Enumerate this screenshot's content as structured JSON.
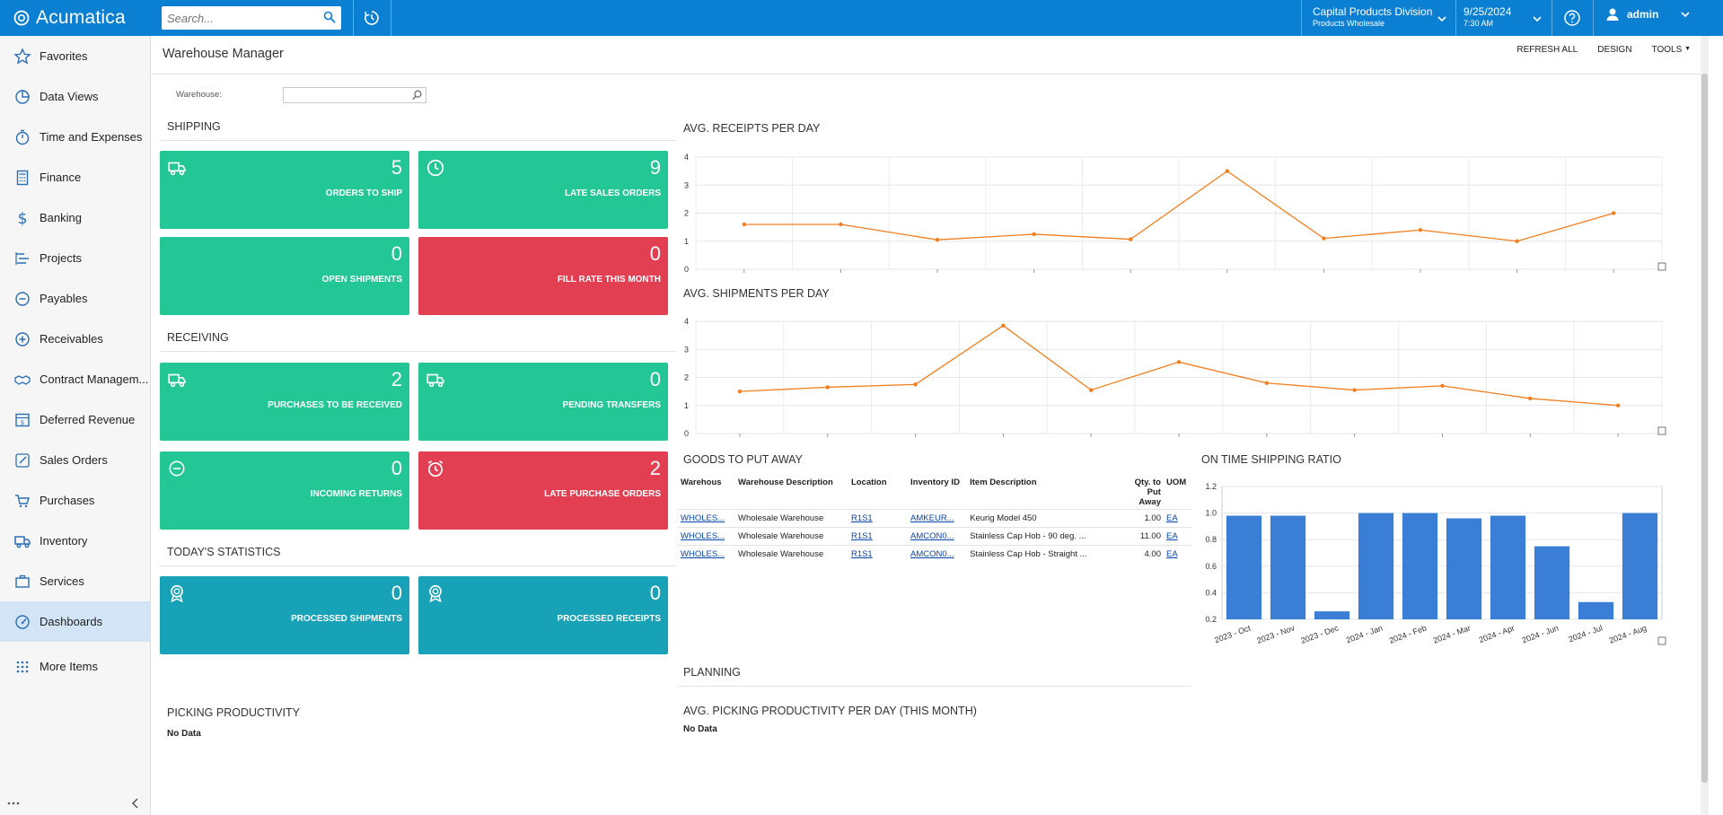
{
  "topbar": {
    "brand": "Acumatica",
    "search_placeholder": "Search...",
    "company_name": "Capital Products Division",
    "company_branch": "Products Wholesale",
    "date": "9/25/2024",
    "time": "7:30 AM",
    "user": "admin"
  },
  "sidebar": {
    "items": [
      {
        "label": "Favorites",
        "icon": "star-icon"
      },
      {
        "label": "Data Views",
        "icon": "pie-chart-icon"
      },
      {
        "label": "Time and Expenses",
        "icon": "stopwatch-icon"
      },
      {
        "label": "Finance",
        "icon": "calculator-icon"
      },
      {
        "label": "Banking",
        "icon": "dollar-icon"
      },
      {
        "label": "Projects",
        "icon": "projects-icon"
      },
      {
        "label": "Payables",
        "icon": "minus-circle-icon"
      },
      {
        "label": "Receivables",
        "icon": "plus-circle-icon"
      },
      {
        "label": "Contract Managem...",
        "icon": "handshake-icon"
      },
      {
        "label": "Deferred Revenue",
        "icon": "deferred-revenue-icon"
      },
      {
        "label": "Sales Orders",
        "icon": "pencil-icon"
      },
      {
        "label": "Purchases",
        "icon": "cart-icon"
      },
      {
        "label": "Inventory",
        "icon": "truck-icon"
      },
      {
        "label": "Services",
        "icon": "briefcase-icon"
      },
      {
        "label": "Dashboards",
        "icon": "gauge-icon"
      },
      {
        "label": "More Items",
        "icon": "grid-dots-icon"
      }
    ],
    "active": "Dashboards"
  },
  "page": {
    "title": "Warehouse Manager",
    "toolbar": {
      "refresh_all": "REFRESH ALL",
      "design": "DESIGN",
      "tools": "TOOLS"
    },
    "warehouse_label": "Warehouse:",
    "warehouse_value": ""
  },
  "shipping": {
    "title": "SHIPPING",
    "tiles": [
      {
        "value": "5",
        "label": "ORDERS TO SHIP",
        "color": "#23c795",
        "icon": "truck-icon"
      },
      {
        "value": "9",
        "label": "LATE SALES ORDERS",
        "color": "#23c795",
        "icon": "clock-icon"
      },
      {
        "value": "0",
        "label": "OPEN SHIPMENTS",
        "color": "#23c795",
        "icon": ""
      },
      {
        "value": "0",
        "label": "FILL RATE THIS MONTH",
        "color": "#e23f53",
        "icon": ""
      }
    ]
  },
  "receiving": {
    "title": "RECEIVING",
    "tiles": [
      {
        "value": "2",
        "label": "PURCHASES TO BE RECEIVED",
        "color": "#23c795",
        "icon": "truck-icon"
      },
      {
        "value": "0",
        "label": "PENDING TRANSFERS",
        "color": "#23c795",
        "icon": "truck-icon"
      },
      {
        "value": "0",
        "label": "INCOMING RETURNS",
        "color": "#23c795",
        "icon": "minus-circle-icon"
      },
      {
        "value": "2",
        "label": "LATE PURCHASE ORDERS",
        "color": "#e23f53",
        "icon": "alarm-clock-icon"
      }
    ]
  },
  "statistics": {
    "title": "TODAY'S STATISTICS",
    "tiles": [
      {
        "value": "0",
        "label": "PROCESSED SHIPMENTS",
        "color": "#17a2b8",
        "icon": "award-icon"
      },
      {
        "value": "0",
        "label": "PROCESSED RECEIPTS",
        "color": "#17a2b8",
        "icon": "award-icon"
      }
    ]
  },
  "picking": {
    "title": "PICKING PRODUCTIVITY",
    "no_data": "No Data"
  },
  "planning": {
    "title": "PLANNING"
  },
  "avg_picking": {
    "title": "AVG. PICKING PRODUCTIVITY PER DAY (THIS MONTH)",
    "no_data": "No Data"
  },
  "goods": {
    "title": "GOODS TO PUT AWAY",
    "columns": [
      "Warehous",
      "Warehouse Description",
      "Location",
      "Inventory ID",
      "Item Description",
      "Qty. to Put Away",
      "UOM"
    ],
    "rows": [
      [
        "WHOLES...",
        "Wholesale Warehouse",
        "R1S1",
        "AMKEUR...",
        "Keurig Model 450",
        "1.00",
        "EA"
      ],
      [
        "WHOLES...",
        "Wholesale Warehouse",
        "R1S1",
        "AMCON0...",
        "Stainless Cap Hob - 90 deg. ...",
        "11.00",
        "EA"
      ],
      [
        "WHOLES...",
        "Wholesale Warehouse",
        "R1S1",
        "AMCON0...",
        "Stainless Cap Hob - Straight ...",
        "4.00",
        "EA"
      ]
    ]
  },
  "chart_data": [
    {
      "type": "line",
      "title": "AVG. RECEIPTS PER DAY",
      "yticks": [
        "0",
        "1",
        "2",
        "3",
        "4"
      ],
      "ylim": [
        0,
        4
      ],
      "values": [
        1.6,
        1.6,
        1.05,
        1.25,
        1.07,
        3.5,
        1.1,
        1.4,
        1.0,
        2.0
      ],
      "color": "#f07f1f",
      "grid": true
    },
    {
      "type": "line",
      "title": "AVG. SHIPMENTS PER DAY",
      "yticks": [
        "0",
        "1",
        "2",
        "3",
        "4"
      ],
      "ylim": [
        0,
        4
      ],
      "values": [
        1.5,
        1.65,
        1.75,
        3.85,
        1.55,
        2.55,
        1.8,
        1.55,
        1.7,
        1.25,
        1.0
      ],
      "color": "#f07f1f",
      "grid": true
    },
    {
      "type": "bar",
      "title": "ON TIME SHIPPING RATIO",
      "categories": [
        "2023 - Oct",
        "2023 - Nov",
        "2023 - Dec",
        "2024 - Jan",
        "2024 - Feb",
        "2024 - Mar",
        "2024 - Apr",
        "2024 - Jun",
        "2024 - Jul",
        "2024 - Aug"
      ],
      "values": [
        0.98,
        0.98,
        0.26,
        1.0,
        1.0,
        0.96,
        0.98,
        0.75,
        0.33,
        1.0
      ],
      "yticks": [
        "0.2",
        "0.4",
        "0.6",
        "0.8",
        "1.0",
        "1.2"
      ],
      "ylim": [
        0.2,
        1.2
      ],
      "color": "#3a7fd5",
      "grid": true
    }
  ]
}
